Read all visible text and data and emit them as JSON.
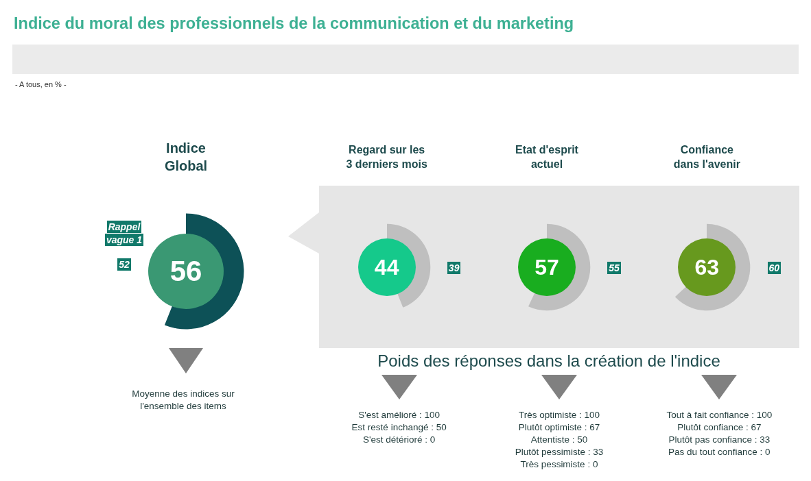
{
  "chart_data": {
    "type": "other",
    "title": "Indice du moral des professionnels de la communication et du marketing",
    "subtitle": "- A tous, en % -",
    "categories": [
      "Indice Global",
      "Regard sur les 3 derniers mois",
      "Etat d'esprit actuel",
      "Confiance dans l'avenir"
    ],
    "colors": [
      "#0d5157",
      "#bfbfbf",
      "#bfbfbf",
      "#bfbfbf"
    ],
    "series": [
      {
        "values": [
          56,
          44,
          57,
          63
        ],
        "colors": [
          "#3a9873",
          "#15c98b",
          "#19ad1f",
          "#67991e"
        ]
      },
      {
        "name": "Rappel vague 1",
        "values": [
          52,
          39,
          55,
          60
        ],
        "color": "#11796a"
      }
    ],
    "data_labels": true,
    "annotations": [
      {
        "text": "Moyenne des indices sur l'ensemble des items",
        "x": "Indice Global"
      },
      "Poids des réponses dans la création de l'indice",
      {
        "text": "S'est amélioré : 100",
        "x": "Regard sur les 3 derniers mois"
      },
      {
        "text": "Est resté inchangé : 50",
        "x": "Regard sur les 3 derniers mois"
      },
      {
        "text": "S'est détérioré : 0",
        "x": "Regard sur les 3 derniers mois"
      },
      {
        "text": "Très optimiste : 100",
        "x": "Etat d'esprit actuel"
      },
      {
        "text": "Plutôt optimiste : 67",
        "x": "Etat d'esprit actuel"
      },
      {
        "text": "Attentiste : 50",
        "x": "Etat d'esprit actuel"
      },
      {
        "text": "Plutôt pessimiste : 33",
        "x": "Etat d'esprit actuel"
      },
      {
        "text": "Très pessimiste : 0",
        "x": "Etat d'esprit actuel"
      },
      {
        "text": "Tout à fait confiance : 100",
        "x": "Confiance dans l'avenir"
      },
      {
        "text": "Plutôt confiance : 67",
        "x": "Confiance dans l'avenir"
      },
      {
        "text": "Plutôt pas confiance : 33",
        "x": "Confiance dans l'avenir"
      },
      {
        "text": "Pas du tout confiance : 0",
        "x": "Confiance dans l'avenir"
      }
    ]
  }
}
